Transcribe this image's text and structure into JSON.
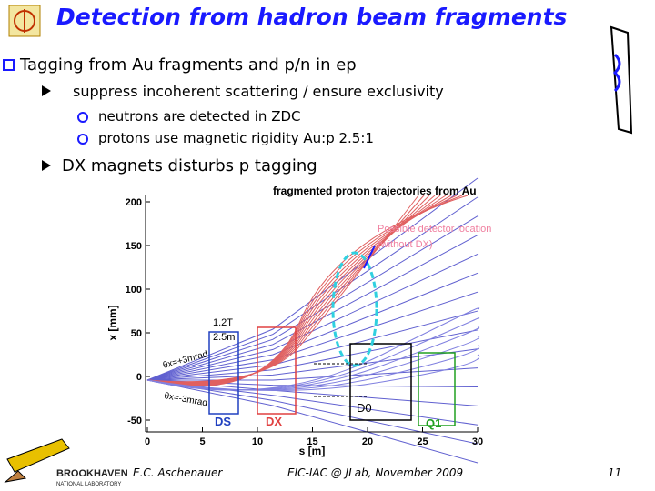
{
  "header": {
    "title": "Detection from hadron beam fragments"
  },
  "bullets": [
    {
      "text": "Tagging from Au fragments and p/n in ep",
      "items": [
        {
          "text": "suppress incoherent scattering / ensure exclusivity",
          "items": [
            "neutrons are detected in ZDC",
            "protons use magnetic rigidity Au:p 2.5:1"
          ]
        },
        {
          "text": "DX magnets disturbs p tagging",
          "items": []
        }
      ]
    }
  ],
  "figure": {
    "title": "fragmented proton trajectories from Au",
    "x_label": "s [m]",
    "y_label": "x [mm]",
    "x_ticks": [
      0,
      5,
      10,
      15,
      20,
      25,
      30
    ],
    "y_ticks": [
      200,
      150,
      100,
      50,
      0,
      -50
    ],
    "annotations": {
      "detector": "Possible detector location",
      "detector_note": "(without DX)",
      "field": "1.2T",
      "length": "2.5m",
      "theta_plus": "θx=+3mrad",
      "theta_minus": "θx=-3mrad",
      "ds": "DS",
      "dx": "DX",
      "d0": "D0",
      "q1": "Q1"
    }
  },
  "footer": {
    "logo": "BROOKHAVEN",
    "logo_sub": "NATIONAL LABORATORY",
    "author": "E.C. Aschenauer",
    "event": "EIC-IAC @ JLab, November 2009",
    "page": "11"
  }
}
